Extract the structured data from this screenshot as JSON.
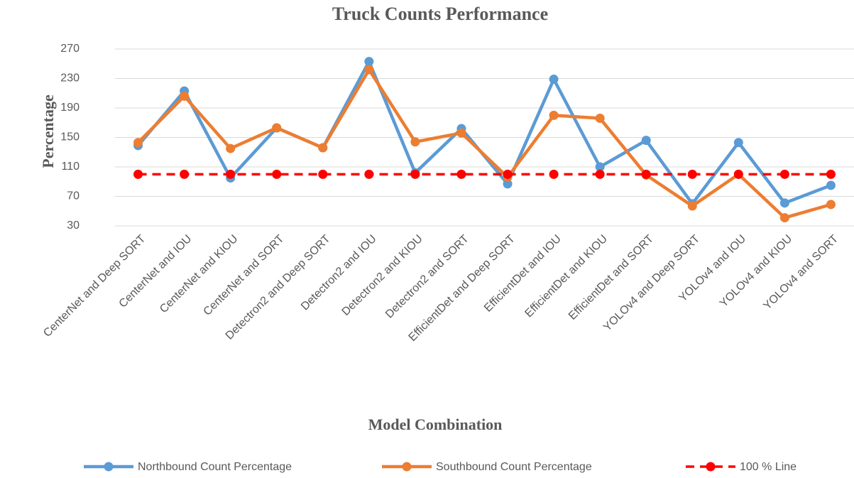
{
  "chart_data": {
    "type": "line",
    "title": "Truck Counts Performance",
    "x_label": "Model Combination",
    "y_label": "Percentage",
    "categories": [
      "CenterNet and Deep SORT",
      "CenterNet and IOU",
      "CenterNet and KIOU",
      "CenterNet and SORT",
      "Detectron2 and Deep SORT",
      "Detectron2 and IOU",
      "Detectron2 and KIOU",
      "Detectron2 and SORT",
      "EfficientDet and Deep SORT",
      "EfficientDet and IOU",
      "EfficientDet and KIOU",
      "EfficientDet and SORT",
      "YOLOv4 and Deep SORT",
      "YOLOv4 and IOU",
      "YOLOv4 and KIOU",
      "YOLOv4 and SORT"
    ],
    "series": [
      {
        "name": "Northbound Count Percentage",
        "color": "#5b9bd5",
        "dashed": false,
        "values": [
          139,
          213,
          95,
          163,
          136,
          253,
          102,
          162,
          87,
          229,
          110,
          146,
          60,
          143,
          61,
          85
        ]
      },
      {
        "name": "Southbound Count Percentage",
        "color": "#ed7d31",
        "dashed": false,
        "values": [
          143,
          206,
          135,
          163,
          136,
          242,
          144,
          156,
          96,
          180,
          176,
          99,
          57,
          100,
          41,
          59
        ]
      },
      {
        "name": "100 % Line",
        "color": "#ff0000",
        "dashed": true,
        "values": [
          100,
          100,
          100,
          100,
          100,
          100,
          100,
          100,
          100,
          100,
          100,
          100,
          100,
          100,
          100,
          100
        ]
      }
    ],
    "ylim": [
      30,
      270
    ],
    "yticks": [
      30,
      70,
      110,
      150,
      190,
      230,
      270
    ],
    "grid": true,
    "legend": "bottom"
  }
}
